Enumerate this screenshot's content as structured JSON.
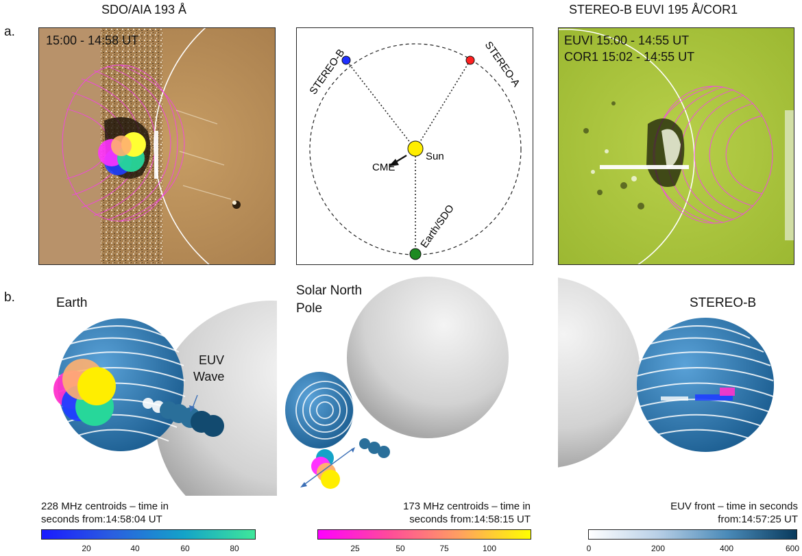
{
  "row_a": {
    "label": "a.",
    "left": {
      "title": "SDO/AIA 193 Å",
      "time_text": "15:00 - 14:58 UT"
    },
    "middle": {
      "stereo_b": "STEREO-B",
      "stereo_a": "STEREO-A",
      "sun": "Sun",
      "cme": "CME",
      "earth_sdo": "Earth/SDO"
    },
    "right": {
      "title": "STEREO-B EUVI 195  Å/COR1",
      "euvi_text": "EUVI 15:00 - 14:55 UT",
      "cor1_text": "COR1 15:02 - 14:55 UT"
    }
  },
  "row_b": {
    "label": "b.",
    "left": {
      "view": "Earth",
      "euv_wave_1": "EUV",
      "euv_wave_2": "Wave"
    },
    "middle": {
      "view_1": "Solar North",
      "view_2": "Pole"
    },
    "right": {
      "view": "STEREO-B"
    }
  },
  "colorbars": [
    {
      "label_1": "228 MHz centroids – time in",
      "label_2": "seconds from:14:58:04 UT",
      "ticks": [
        "20",
        "40",
        "60",
        "80"
      ],
      "colors": [
        "#1a1aff",
        "#2a5fe0",
        "#14a3c8",
        "#3fe79a"
      ]
    },
    {
      "label_1": "173 MHz centroids – time in",
      "label_2": "seconds from:14:58:15 UT",
      "ticks": [
        "25",
        "50",
        "75",
        "100"
      ],
      "colors": [
        "#ff00ff",
        "#ff4b9a",
        "#ffa060",
        "#ffff00"
      ]
    },
    {
      "label_1": "EUV front – time in seconds",
      "label_2": "from:14:57:25 UT",
      "ticks": [
        "0",
        "200",
        "400",
        "600"
      ],
      "colors": [
        "#ffffff",
        "#b8cfe6",
        "#4a8ab8",
        "#083a5c"
      ]
    }
  ]
}
